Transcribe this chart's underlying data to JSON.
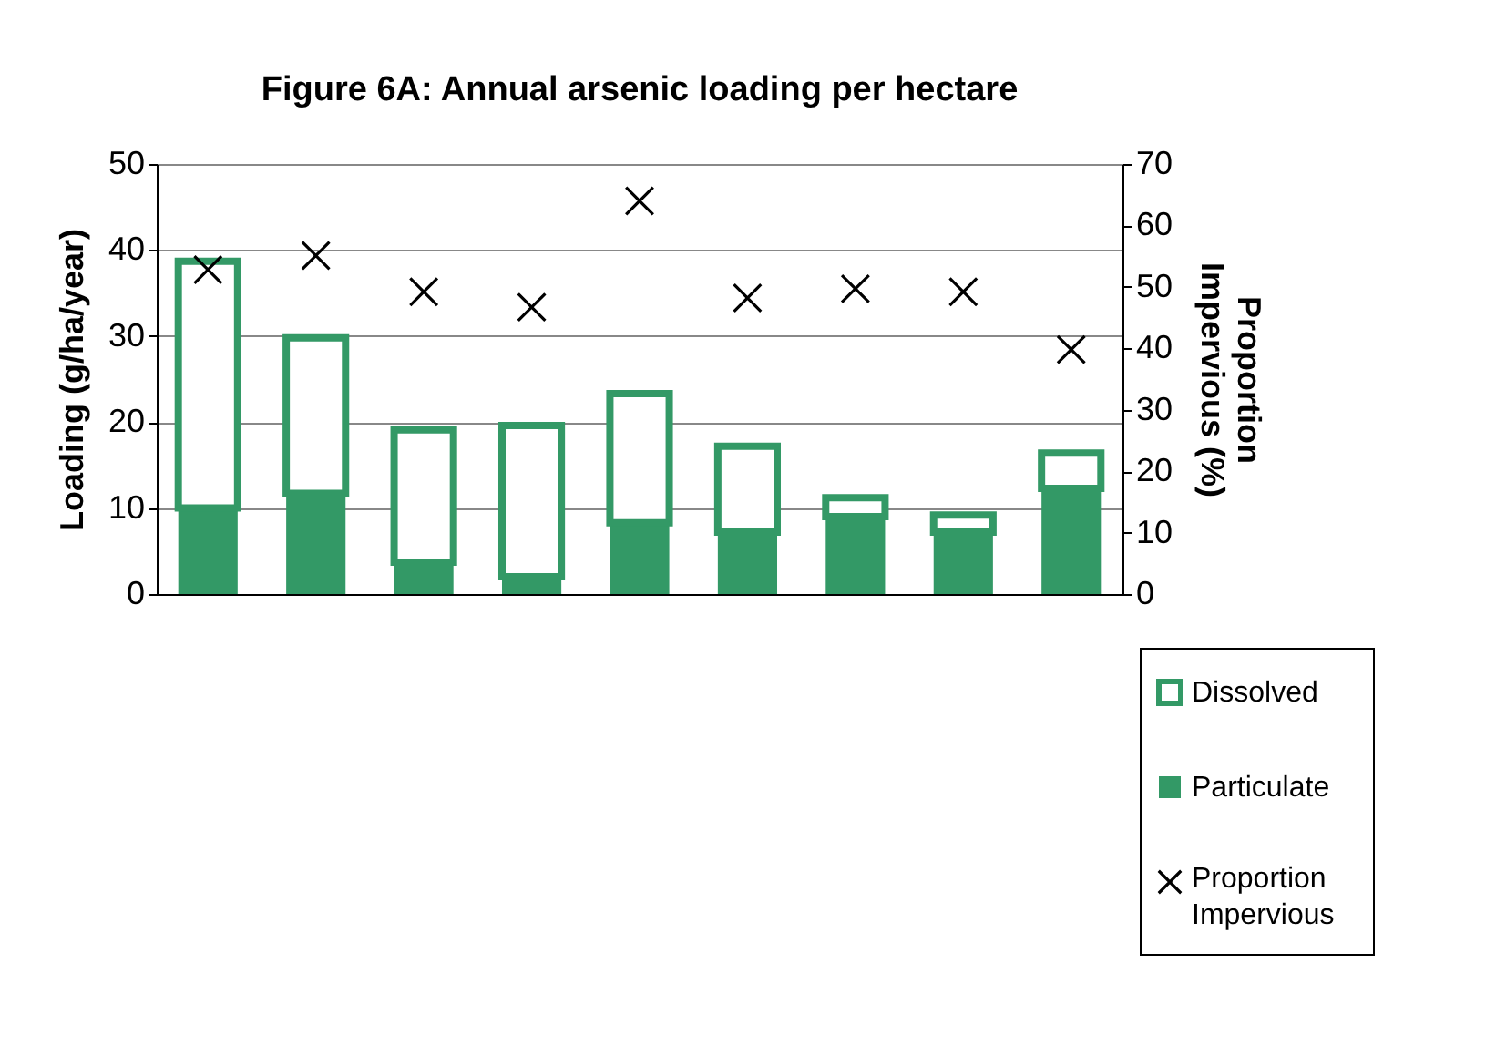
{
  "chart_data": {
    "type": "bar",
    "title": "Figure 6A: Annual arsenic loading per hectare",
    "categories": [
      null,
      null,
      null,
      null,
      null,
      null,
      null,
      null,
      null
    ],
    "stacked": true,
    "series": [
      {
        "name": "Particulate",
        "color": "#339966",
        "values": [
          10,
          11.7,
          3.7,
          2,
          8.3,
          7.2,
          9,
          7.2,
          12.3
        ]
      },
      {
        "name": "Dissolved",
        "color": "#339966",
        "values": [
          28.7,
          18.1,
          15.4,
          17.6,
          15,
          10,
          2.2,
          2,
          4.1
        ]
      },
      {
        "name": "Proportion Impervious",
        "type": "scatter",
        "axis": "y2",
        "color": "#000000",
        "values": [
          52.8,
          55.1,
          49.2,
          46.7,
          64,
          48.2,
          49.7,
          49.2,
          39.8
        ]
      }
    ],
    "ylabel": "Loading (g/ha/year)",
    "y2label": "Proportion Impervious (%)",
    "ylim": [
      0,
      50
    ],
    "yticks": [
      0,
      10,
      20,
      30,
      40,
      50
    ],
    "y2lim": [
      0,
      70
    ],
    "y2ticks": [
      0,
      10,
      20,
      30,
      40,
      50,
      60,
      70
    ],
    "grid": "y",
    "legend": "bottom right",
    "marker": "cross",
    "tick_labels": "y"
  }
}
